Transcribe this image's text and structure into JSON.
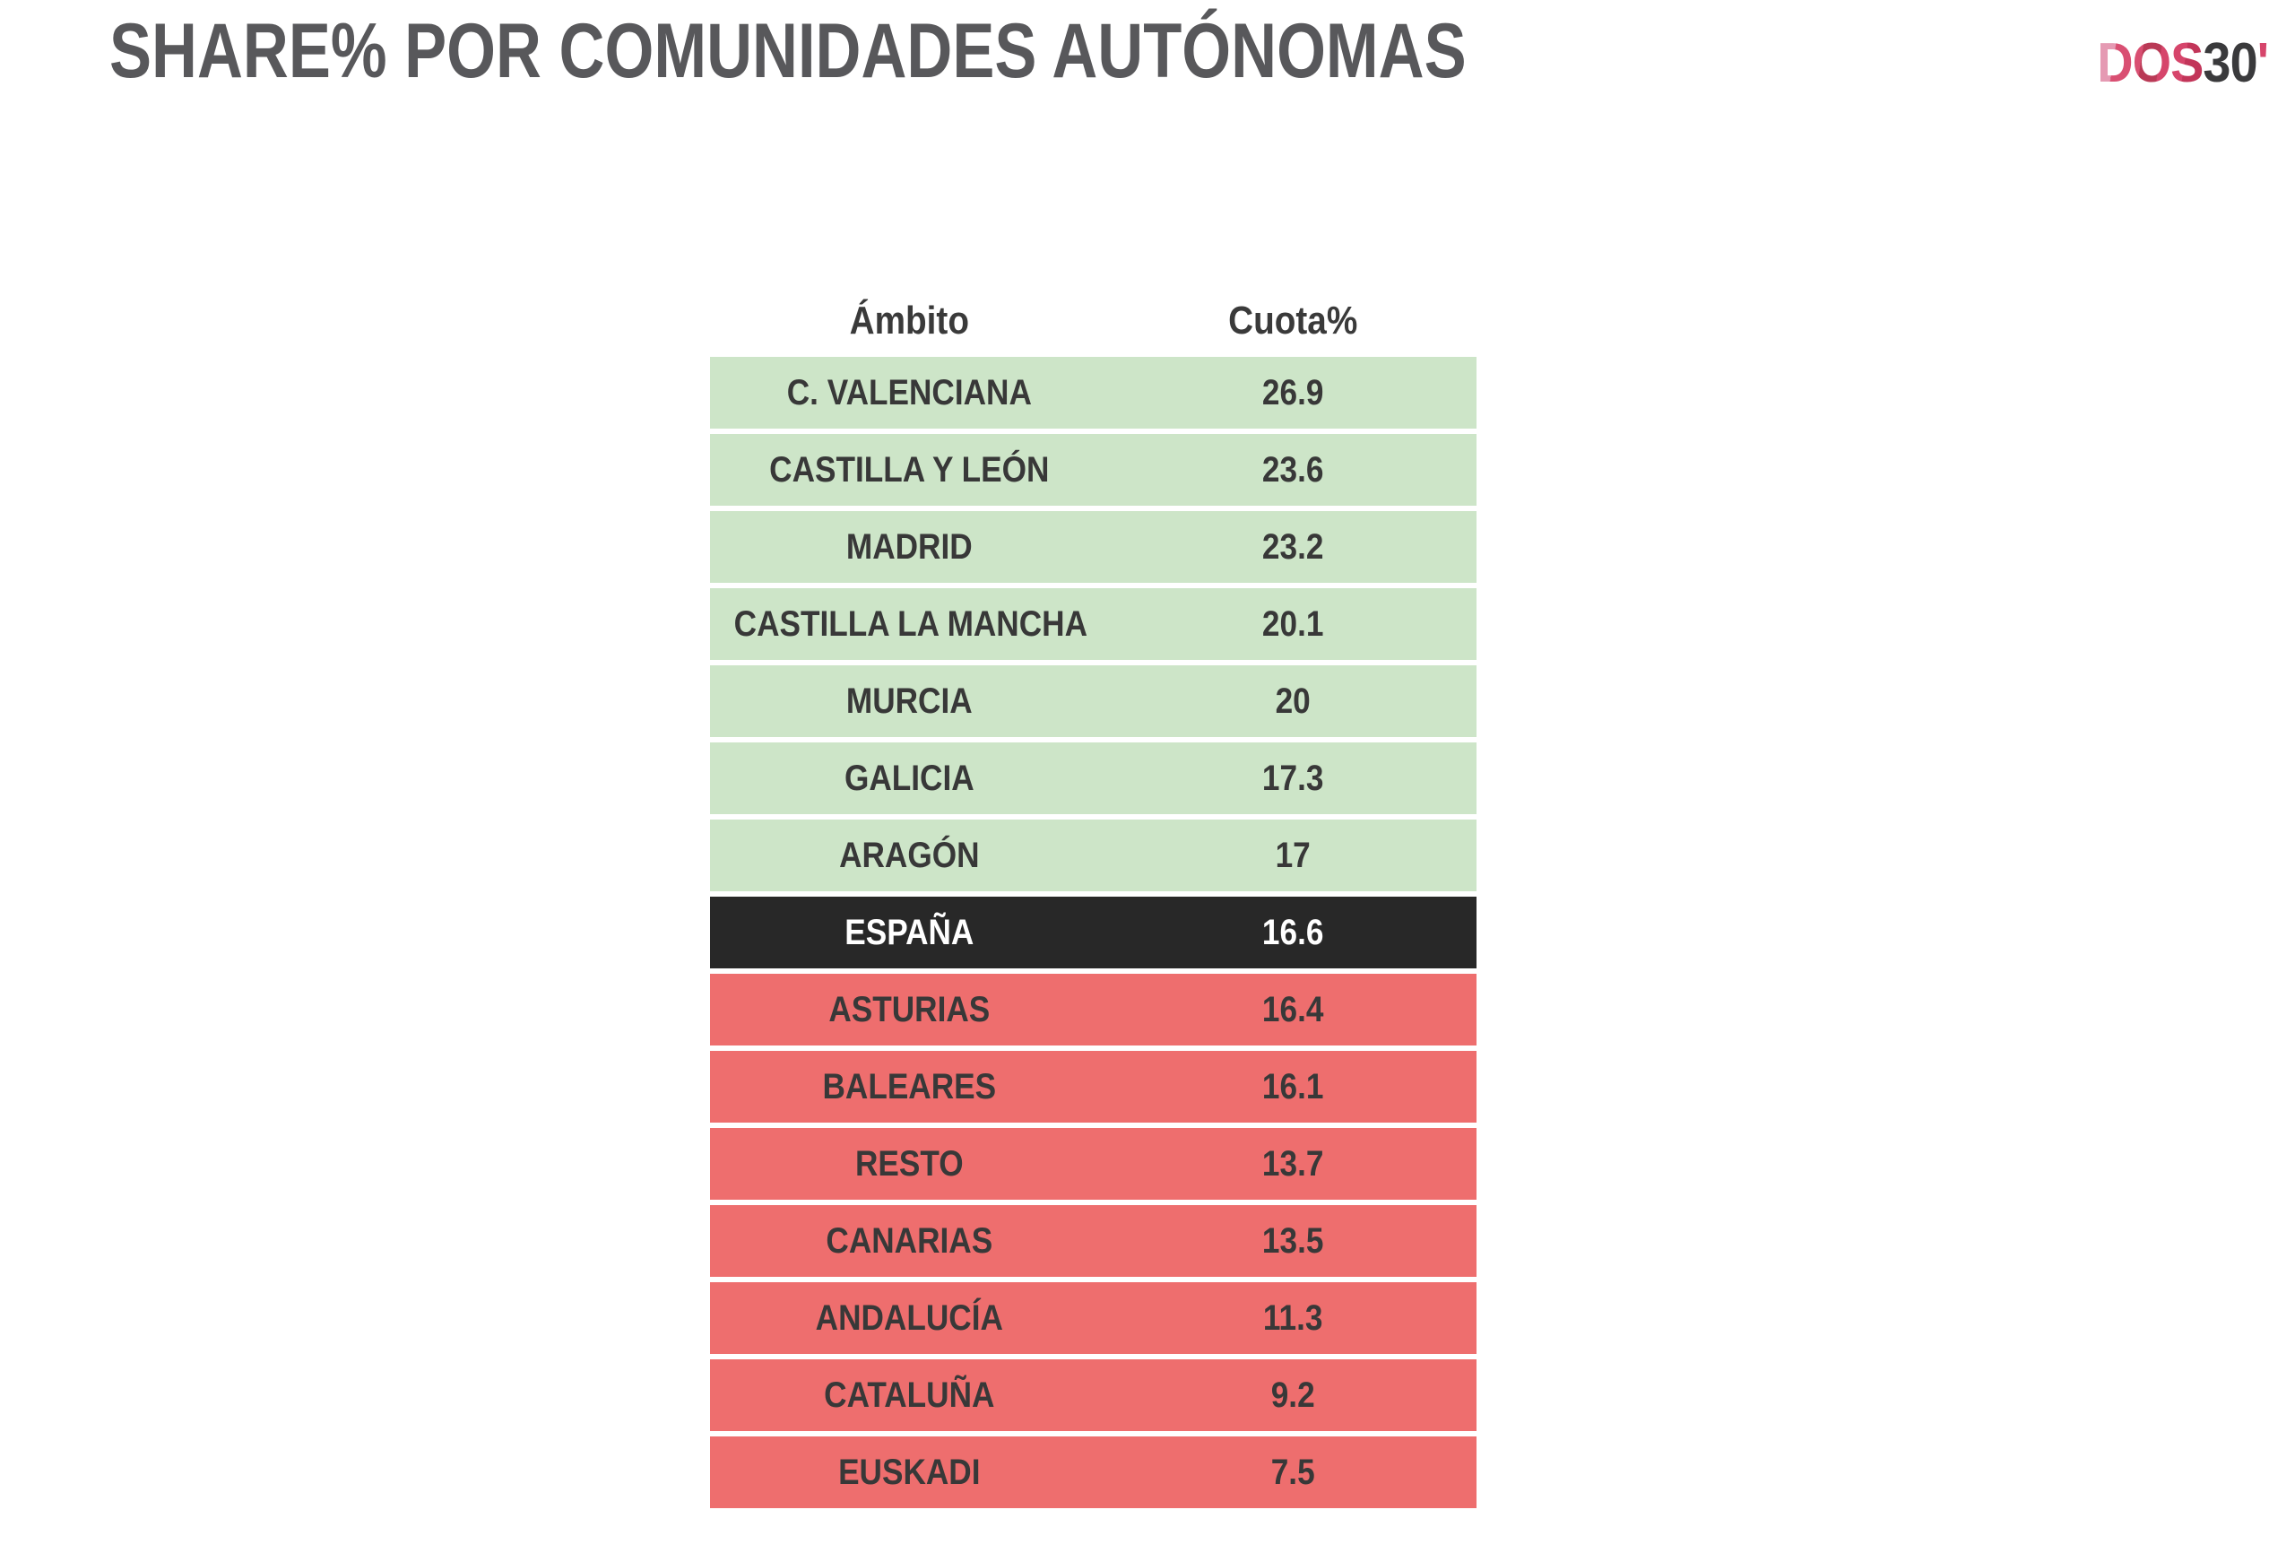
{
  "page": {
    "title": "SHARE% POR COMUNIDADES AUTÓNOMAS",
    "logo": {
      "dos": "DOS",
      "thirty": "30",
      "apostrophe": "'"
    }
  },
  "table": {
    "headers": {
      "ambito": "Ámbito",
      "cuota": "Cuota%"
    },
    "rows": [
      {
        "label": "C. VALENCIANA",
        "value": "26.9",
        "category": "green"
      },
      {
        "label": "CASTILLA Y LEÓN",
        "value": "23.6",
        "category": "green"
      },
      {
        "label": "MADRID",
        "value": "23.2",
        "category": "green"
      },
      {
        "label": "CASTILLA LA MANCHA",
        "value": "20.1",
        "category": "green"
      },
      {
        "label": "MURCIA",
        "value": "20",
        "category": "green"
      },
      {
        "label": "GALICIA",
        "value": "17.3",
        "category": "green"
      },
      {
        "label": "ARAGÓN",
        "value": "17",
        "category": "green"
      },
      {
        "label": "ESPAÑA",
        "value": "16.6",
        "category": "dark"
      },
      {
        "label": "ASTURIAS",
        "value": "16.4",
        "category": "red"
      },
      {
        "label": "BALEARES",
        "value": "16.1",
        "category": "red"
      },
      {
        "label": "RESTO",
        "value": "13.7",
        "category": "red"
      },
      {
        "label": "CANARIAS",
        "value": "13.5",
        "category": "red"
      },
      {
        "label": "ANDALUCÍA",
        "value": "11.3",
        "category": "red"
      },
      {
        "label": "CATALUÑA",
        "value": "9.2",
        "category": "red"
      },
      {
        "label": "EUSKADI",
        "value": "7.5",
        "category": "red"
      }
    ]
  },
  "colors": {
    "row_green": "#cde5c8",
    "row_red": "#ee6e6e",
    "row_dark": "#282828",
    "row_text": "#383838",
    "header_text": "#3a3a3a",
    "title_color": "#58585b",
    "logo_pink": "#d6456b",
    "logo_dark": "#3a3a3c"
  },
  "chart_data": {
    "type": "table",
    "title": "SHARE% POR COMUNIDADES AUTÓNOMAS",
    "columns": [
      "Ámbito",
      "Cuota%"
    ],
    "rows": [
      [
        "C. VALENCIANA",
        26.9
      ],
      [
        "CASTILLA Y LEÓN",
        23.6
      ],
      [
        "MADRID",
        23.2
      ],
      [
        "CASTILLA LA MANCHA",
        20.1
      ],
      [
        "MURCIA",
        20
      ],
      [
        "GALICIA",
        17.3
      ],
      [
        "ARAGÓN",
        17
      ],
      [
        "ESPAÑA",
        16.6
      ],
      [
        "ASTURIAS",
        16.4
      ],
      [
        "BALEARES",
        16.1
      ],
      [
        "RESTO",
        13.7
      ],
      [
        "CANARIAS",
        13.5
      ],
      [
        "ANDALUCÍA",
        11.3
      ],
      [
        "CATALUÑA",
        9.2
      ],
      [
        "EUSKADI",
        7.5
      ]
    ],
    "highlight_row": "ESPAÑA",
    "color_coding": "rows above ESPAÑA shaded green, ESPAÑA row black with white text, rows below ESPAÑA shaded red",
    "sort": "descending by Cuota%"
  }
}
